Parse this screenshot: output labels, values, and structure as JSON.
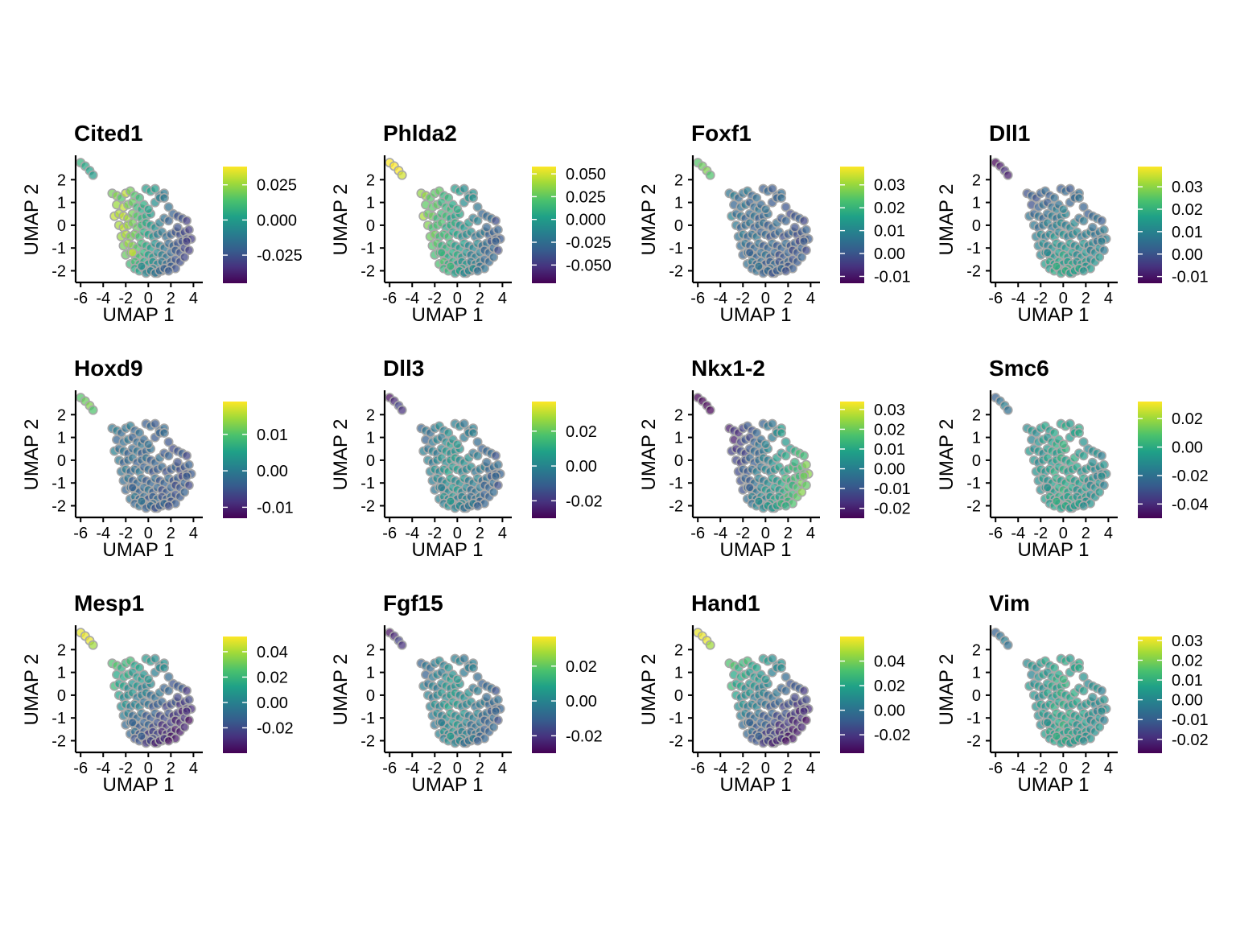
{
  "chart_data": [
    {
      "type": "scatter",
      "title": "Cited1",
      "xlabel": "UMAP 1",
      "ylabel": "UMAP 2",
      "xticks": [
        -6,
        -4,
        -2,
        0,
        2,
        4
      ],
      "yticks": [
        -2,
        -1,
        0,
        1,
        2
      ],
      "xlim": [
        -6.3,
        4.4
      ],
      "ylim": [
        -2.3,
        3.0
      ],
      "color_scale": "viridis",
      "colorbar": {
        "range": [
          -0.045,
          0.038
        ],
        "ticks": [
          0.025,
          0.0,
          -0.025
        ],
        "tick_labels": [
          "0.025",
          "0.000",
          "-0.025"
        ]
      },
      "pattern": "left_high",
      "series": [
        {
          "x": [
            -6.0,
            -5.6,
            -5.2,
            -4.9,
            -3.2,
            -2.8,
            -2.4,
            -2.0,
            -1.6,
            -1.2,
            -0.8,
            -2.8,
            -2.2,
            -1.8,
            -1.4,
            -1.0,
            -0.6,
            -0.2,
            0.2,
            -3.0,
            -2.6,
            -2.2,
            -1.8,
            -1.4,
            -1.0,
            -0.6,
            -0.2,
            0.2,
            0.6,
            1.0,
            1.4,
            1.8,
            -2.6,
            -2.2,
            -1.8,
            -1.4,
            -1.0,
            -0.6,
            -0.2,
            0.2,
            0.6,
            1.0,
            1.4,
            1.8,
            2.2,
            2.6,
            3.0,
            3.4,
            -2.4,
            -2.0,
            -1.6,
            -1.2,
            -0.8,
            -0.4,
            0.0,
            0.4,
            0.8,
            1.2,
            1.6,
            2.0,
            2.4,
            2.8,
            3.2,
            3.6,
            -2.2,
            -1.8,
            -1.4,
            -1.0,
            -0.6,
            -0.2,
            0.2,
            0.6,
            1.0,
            1.4,
            1.8,
            2.2,
            2.6,
            3.0,
            3.4,
            3.8,
            -2.0,
            -1.6,
            -1.2,
            -0.8,
            -0.4,
            0.0,
            0.4,
            0.8,
            1.2,
            1.6,
            2.0,
            2.4,
            2.8,
            3.2,
            3.6,
            -1.6,
            -1.2,
            -0.8,
            -0.4,
            0.0,
            0.4,
            0.8,
            1.2,
            1.6,
            2.0,
            2.4,
            2.8,
            3.2,
            -1.2,
            -0.8,
            -0.4,
            0.0,
            0.4,
            0.8,
            1.2,
            1.6,
            2.0,
            2.4,
            -0.6,
            -0.2,
            0.2,
            0.6,
            1.0,
            1.4,
            1.8,
            -0.4,
            0.0,
            0.6,
            1.0,
            1.4,
            2.6,
            3.4,
            -1.4
          ],
          "y": [
            2.75,
            2.6,
            2.4,
            2.2,
            1.4,
            1.3,
            1.2,
            1.4,
            1.5,
            1.3,
            1.2,
            0.9,
            0.8,
            0.9,
            1.0,
            0.8,
            0.7,
            1.6,
            1.5,
            0.4,
            0.5,
            0.4,
            0.3,
            0.5,
            0.4,
            0.3,
            0.4,
            0.5,
            1.0,
            1.3,
            1.4,
            0.8,
            0.0,
            -0.1,
            0.0,
            0.1,
            -0.1,
            0.0,
            0.1,
            0.0,
            -0.1,
            0.1,
            0.3,
            0.2,
            0.5,
            0.4,
            0.3,
            0.2,
            -0.5,
            -0.4,
            -0.5,
            -0.4,
            -0.5,
            -0.3,
            -0.4,
            -0.5,
            -0.4,
            -0.3,
            -0.5,
            -0.4,
            -0.3,
            -0.4,
            -0.3,
            -0.2,
            -0.9,
            -0.8,
            -0.9,
            -1.0,
            -0.8,
            -0.9,
            -1.0,
            -0.8,
            -0.9,
            -1.0,
            -0.8,
            -0.9,
            -0.8,
            -0.7,
            -0.6,
            -0.6,
            -1.3,
            -1.2,
            -1.3,
            -1.4,
            -1.2,
            -1.3,
            -1.4,
            -1.2,
            -1.3,
            -1.4,
            -1.2,
            -1.1,
            -1.2,
            -1.0,
            -1.1,
            -1.7,
            -1.6,
            -1.7,
            -1.6,
            -1.7,
            -1.6,
            -1.7,
            -1.6,
            -1.7,
            -1.6,
            -1.5,
            -1.6,
            -1.4,
            -1.9,
            -2.0,
            -1.9,
            -2.0,
            -1.9,
            -2.1,
            -2.0,
            -1.9,
            -1.8,
            -1.9,
            -1.8,
            -2.1,
            -2.0,
            -2.1,
            -2.0,
            -1.9,
            -2.0,
            0.9,
            0.7,
            1.6,
            1.2,
            1.2,
            -0.1,
            -0.7,
            -1.2
          ],
          "values": [
            0.008,
            0.004,
            0.002,
            0.0,
            0.02,
            0.022,
            0.015,
            0.03,
            0.02,
            0.015,
            0.01,
            0.025,
            0.03,
            0.02,
            0.018,
            0.01,
            0.005,
            0.0,
            0.002,
            0.03,
            0.028,
            0.03,
            0.026,
            0.02,
            0.015,
            0.008,
            0.005,
            0.0,
            -0.005,
            -0.01,
            -0.012,
            -0.015,
            0.027,
            0.03,
            0.025,
            0.02,
            0.018,
            0.01,
            0.005,
            0.0,
            -0.005,
            -0.01,
            -0.015,
            -0.02,
            -0.02,
            -0.025,
            -0.025,
            -0.03,
            0.025,
            0.028,
            0.02,
            0.02,
            0.012,
            0.006,
            0.002,
            -0.004,
            -0.01,
            -0.012,
            -0.016,
            -0.02,
            -0.024,
            -0.026,
            -0.028,
            -0.03,
            0.02,
            0.025,
            0.022,
            0.015,
            0.01,
            0.005,
            0.0,
            -0.004,
            -0.01,
            -0.014,
            -0.018,
            -0.02,
            -0.024,
            -0.026,
            -0.028,
            -0.03,
            0.018,
            0.02,
            0.015,
            0.012,
            0.008,
            0.002,
            -0.002,
            -0.006,
            -0.01,
            -0.014,
            -0.018,
            -0.022,
            -0.025,
            -0.028,
            -0.03,
            0.01,
            0.012,
            0.008,
            0.004,
            0.0,
            -0.004,
            -0.008,
            -0.012,
            -0.016,
            -0.02,
            -0.024,
            -0.026,
            -0.028,
            0.005,
            0.002,
            0.0,
            -0.004,
            -0.008,
            -0.012,
            -0.016,
            -0.02,
            -0.022,
            -0.025,
            -0.006,
            -0.008,
            -0.01,
            -0.014,
            -0.018,
            -0.02,
            -0.022,
            0.006,
            0.002,
            0.0,
            -0.01,
            -0.012,
            -0.025,
            -0.03,
            0.032
          ]
        }
      ]
    },
    {
      "type": "scatter",
      "title": "Phlda2",
      "xlabel": "UMAP 1",
      "ylabel": "UMAP 2",
      "xticks": [
        -6,
        -4,
        -2,
        0,
        2,
        4
      ],
      "yticks": [
        -2,
        -1,
        0,
        1,
        2
      ],
      "xlim": [
        -6.3,
        4.4
      ],
      "ylim": [
        -2.3,
        3.0
      ],
      "color_scale": "viridis",
      "colorbar": {
        "range": [
          -0.07,
          0.058
        ],
        "ticks": [
          0.05,
          0.025,
          0.0,
          -0.025,
          -0.05
        ],
        "tick_labels": [
          "0.050",
          "0.025",
          "0.000",
          "-0.025",
          "-0.050"
        ]
      },
      "pattern": "left_high",
      "series": []
    },
    {
      "type": "scatter",
      "title": "Foxf1",
      "xlabel": "UMAP 1",
      "ylabel": "UMAP 2",
      "xticks": [
        -6,
        -4,
        -2,
        0,
        2,
        4
      ],
      "yticks": [
        -2,
        -1,
        0,
        1,
        2
      ],
      "xlim": [
        -6.3,
        4.4
      ],
      "ylim": [
        -2.3,
        3.0
      ],
      "color_scale": "viridis",
      "colorbar": {
        "range": [
          -0.013,
          0.038
        ],
        "ticks": [
          0.03,
          0.02,
          0.01,
          0.0,
          -0.01
        ],
        "tick_labels": [
          "0.03",
          "0.02",
          "0.01",
          "0.00",
          "-0.01"
        ]
      },
      "pattern": "low_uniform",
      "series": []
    },
    {
      "type": "scatter",
      "title": "Dll1",
      "xlabel": "UMAP 1",
      "ylabel": "UMAP 2",
      "xticks": [
        -6,
        -4,
        -2,
        0,
        2,
        4
      ],
      "yticks": [
        -2,
        -1,
        0,
        1,
        2
      ],
      "xlim": [
        -6.3,
        4.4
      ],
      "ylim": [
        -2.3,
        3.0
      ],
      "color_scale": "viridis",
      "colorbar": {
        "range": [
          -0.013,
          0.039
        ],
        "ticks": [
          0.03,
          0.02,
          0.01,
          0.0,
          -0.01
        ],
        "tick_labels": [
          "0.03",
          "0.02",
          "0.01",
          "0.00",
          "-0.01"
        ]
      },
      "pattern": "bottom_mid",
      "series": []
    },
    {
      "type": "scatter",
      "title": "Hoxd9",
      "xlabel": "UMAP 1",
      "ylabel": "UMAP 2",
      "xticks": [
        -6,
        -4,
        -2,
        0,
        2,
        4
      ],
      "yticks": [
        -2,
        -1,
        0,
        1,
        2
      ],
      "xlim": [
        -6.3,
        4.4
      ],
      "ylim": [
        -2.3,
        3.0
      ],
      "color_scale": "viridis",
      "colorbar": {
        "range": [
          -0.013,
          0.019
        ],
        "ticks": [
          0.01,
          0.0,
          -0.01
        ],
        "tick_labels": [
          "0.01",
          "0.00",
          "-0.01"
        ]
      },
      "pattern": "low_uniform",
      "series": []
    },
    {
      "type": "scatter",
      "title": "Dll3",
      "xlabel": "UMAP 1",
      "ylabel": "UMAP 2",
      "xticks": [
        -6,
        -4,
        -2,
        0,
        2,
        4
      ],
      "yticks": [
        -2,
        -1,
        0,
        1,
        2
      ],
      "xlim": [
        -6.3,
        4.4
      ],
      "ylim": [
        -2.3,
        3.0
      ],
      "color_scale": "viridis",
      "colorbar": {
        "range": [
          -0.03,
          0.037
        ],
        "ticks": [
          0.02,
          0.0,
          -0.02
        ],
        "tick_labels": [
          "0.02",
          "0.00",
          "-0.02"
        ]
      },
      "pattern": "center_mid",
      "series": []
    },
    {
      "type": "scatter",
      "title": "Nkx1-2",
      "xlabel": "UMAP 1",
      "ylabel": "UMAP 2",
      "xticks": [
        -6,
        -4,
        -2,
        0,
        2,
        4
      ],
      "yticks": [
        -2,
        -1,
        0,
        1,
        2
      ],
      "xlim": [
        -6.3,
        4.4
      ],
      "ylim": [
        -2.3,
        3.0
      ],
      "color_scale": "viridis",
      "colorbar": {
        "range": [
          -0.025,
          0.034
        ],
        "ticks": [
          0.03,
          0.02,
          0.01,
          0.0,
          -0.01,
          -0.02
        ],
        "tick_labels": [
          "0.03",
          "0.02",
          "0.01",
          "0.00",
          "-0.01",
          "-0.02"
        ]
      },
      "pattern": "right_high",
      "series": []
    },
    {
      "type": "scatter",
      "title": "Smc6",
      "xlabel": "UMAP 1",
      "ylabel": "UMAP 2",
      "xticks": [
        -6,
        -4,
        -2,
        0,
        2,
        4
      ],
      "yticks": [
        -2,
        -1,
        0,
        1,
        2
      ],
      "xlim": [
        -6.3,
        4.4
      ],
      "ylim": [
        -2.3,
        3.0
      ],
      "color_scale": "viridis",
      "colorbar": {
        "range": [
          -0.05,
          0.032
        ],
        "ticks": [
          0.02,
          0.0,
          -0.02,
          -0.04
        ],
        "tick_labels": [
          "0.02",
          "0.00",
          "-0.02",
          "-0.04"
        ]
      },
      "pattern": "mostly_mid",
      "series": []
    },
    {
      "type": "scatter",
      "title": "Mesp1",
      "xlabel": "UMAP 1",
      "ylabel": "UMAP 2",
      "xticks": [
        -6,
        -4,
        -2,
        0,
        2,
        4
      ],
      "yticks": [
        -2,
        -1,
        0,
        1,
        2
      ],
      "xlim": [
        -6.3,
        4.4
      ],
      "ylim": [
        -2.3,
        3.0
      ],
      "color_scale": "viridis",
      "colorbar": {
        "range": [
          -0.04,
          0.052
        ],
        "ticks": [
          0.04,
          0.02,
          0.0,
          -0.02
        ],
        "tick_labels": [
          "0.04",
          "0.02",
          "0.00",
          "-0.02"
        ]
      },
      "pattern": "upper_left_high",
      "series": []
    },
    {
      "type": "scatter",
      "title": "Fgf15",
      "xlabel": "UMAP 1",
      "ylabel": "UMAP 2",
      "xticks": [
        -6,
        -4,
        -2,
        0,
        2,
        4
      ],
      "yticks": [
        -2,
        -1,
        0,
        1,
        2
      ],
      "xlim": [
        -6.3,
        4.4
      ],
      "ylim": [
        -2.3,
        3.0
      ],
      "color_scale": "viridis",
      "colorbar": {
        "range": [
          -0.03,
          0.037
        ],
        "ticks": [
          0.02,
          0.0,
          -0.02
        ],
        "tick_labels": [
          "0.02",
          "0.00",
          "-0.02"
        ]
      },
      "pattern": "center_mid",
      "series": []
    },
    {
      "type": "scatter",
      "title": "Hand1",
      "xlabel": "UMAP 1",
      "ylabel": "UMAP 2",
      "xticks": [
        -6,
        -4,
        -2,
        0,
        2,
        4
      ],
      "yticks": [
        -2,
        -1,
        0,
        1,
        2
      ],
      "xlim": [
        -6.3,
        4.4
      ],
      "ylim": [
        -2.3,
        3.0
      ],
      "color_scale": "viridis",
      "colorbar": {
        "range": [
          -0.035,
          0.06
        ],
        "ticks": [
          0.04,
          0.02,
          0.0,
          -0.02
        ],
        "tick_labels": [
          "0.04",
          "0.02",
          "0.00",
          "-0.02"
        ]
      },
      "pattern": "upper_left_high",
      "series": []
    },
    {
      "type": "scatter",
      "title": "Vim",
      "xlabel": "UMAP 1",
      "ylabel": "UMAP 2",
      "xticks": [
        -6,
        -4,
        -2,
        0,
        2,
        4
      ],
      "yticks": [
        -2,
        -1,
        0,
        1,
        2
      ],
      "xlim": [
        -6.3,
        4.4
      ],
      "ylim": [
        -2.3,
        3.0
      ],
      "color_scale": "viridis",
      "colorbar": {
        "range": [
          -0.027,
          0.032
        ],
        "ticks": [
          0.03,
          0.02,
          0.01,
          0.0,
          -0.01,
          -0.02
        ],
        "tick_labels": [
          "0.03",
          "0.02",
          "0.01",
          "0.00",
          "-0.01",
          "-0.02"
        ]
      },
      "pattern": "mostly_mid",
      "series": []
    }
  ]
}
